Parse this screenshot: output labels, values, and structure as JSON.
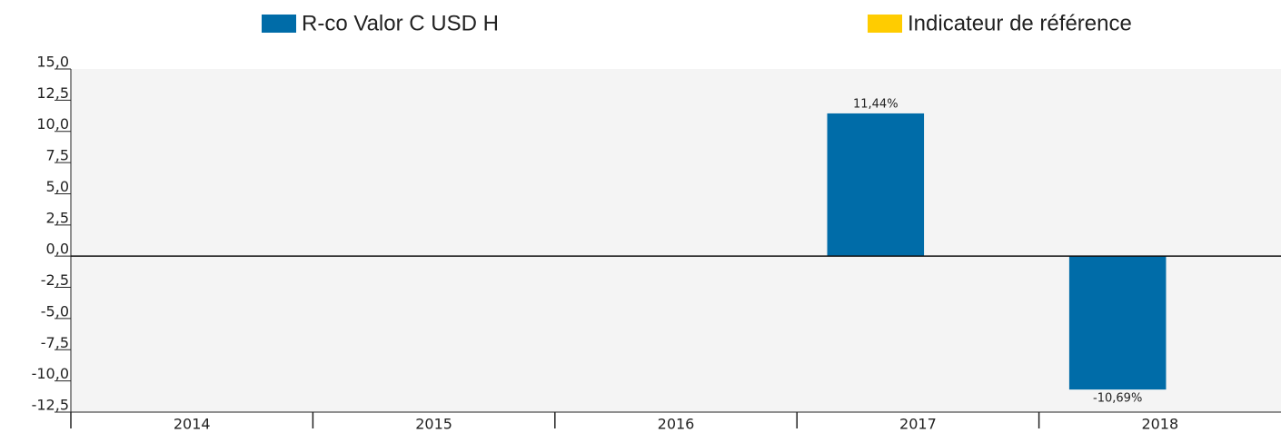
{
  "chart_data": {
    "type": "bar",
    "categories": [
      "2014",
      "2015",
      "2016",
      "2017",
      "2018"
    ],
    "series": [
      {
        "name": "R-co Valor C USD H",
        "color": "#006ca8",
        "values": [
          null,
          null,
          null,
          11.44,
          -10.69
        ],
        "value_labels": [
          null,
          null,
          null,
          "11,44%",
          "-10,69%"
        ]
      },
      {
        "name": "Indicateur de référence",
        "color": "#ffcc00",
        "values": [
          null,
          null,
          null,
          null,
          null
        ]
      }
    ],
    "ylim": [
      -12.5,
      15
    ],
    "yticks": [
      {
        "value": 15,
        "label": "15,0"
      },
      {
        "value": 12.5,
        "label": "12,5"
      },
      {
        "value": 10,
        "label": "10,0"
      },
      {
        "value": 7.5,
        "label": "7,5"
      },
      {
        "value": 5,
        "label": "5,0"
      },
      {
        "value": 2.5,
        "label": "2,5"
      },
      {
        "value": 0,
        "label": "0,0"
      },
      {
        "value": -2.5,
        "label": "-2,5"
      },
      {
        "value": -5,
        "label": "-5,0"
      },
      {
        "value": -7.5,
        "label": "-7,5"
      },
      {
        "value": -10,
        "label": "-10,0"
      },
      {
        "value": -12.5,
        "label": "-12,5"
      }
    ],
    "legend": "top"
  }
}
